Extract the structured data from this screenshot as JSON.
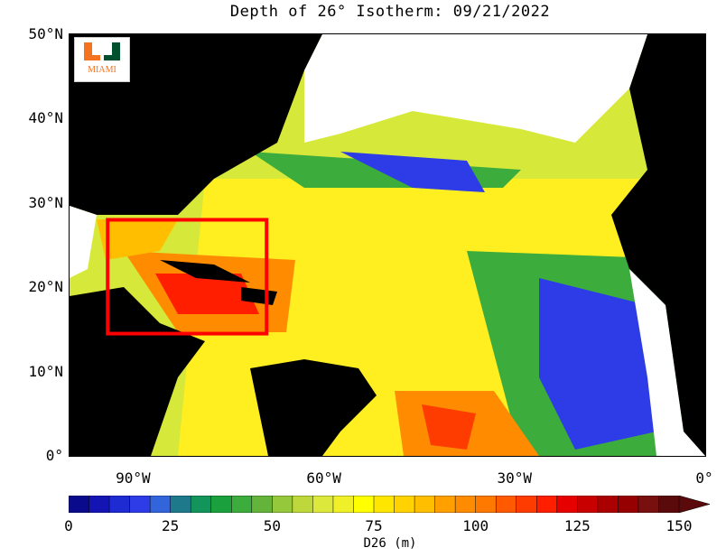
{
  "title": "Depth of 26° Isotherm: 09/21/2022",
  "logo": {
    "text": "MIAMI",
    "colors": {
      "green": "#005030",
      "orange": "#f47321"
    }
  },
  "map": {
    "lon_range": [
      -100,
      0
    ],
    "lat_range": [
      0,
      50
    ],
    "lat_ticks": [
      {
        "value": 50,
        "label": "50°N"
      },
      {
        "value": 40,
        "label": "40°N"
      },
      {
        "value": 30,
        "label": "30°N"
      },
      {
        "value": 20,
        "label": "20°N"
      },
      {
        "value": 10,
        "label": "10°N"
      },
      {
        "value": 0,
        "label": "0°"
      }
    ],
    "lon_ticks": [
      {
        "value": -90,
        "label": "90°W"
      },
      {
        "value": -60,
        "label": "60°W"
      },
      {
        "value": -30,
        "label": "30°W"
      },
      {
        "value": 0,
        "label": "0°"
      }
    ],
    "highlight_box": {
      "lon": [
        -94,
        -69
      ],
      "lat": [
        14.5,
        28
      ],
      "color": "#ff0000"
    },
    "land_color": "#000000",
    "undefined_color": "#ffffff"
  },
  "colorbar": {
    "label": "D26 (m)",
    "range": [
      0,
      150
    ],
    "step": 5,
    "tick_labels": [
      {
        "value": 0,
        "label": "0"
      },
      {
        "value": 25,
        "label": "25"
      },
      {
        "value": 50,
        "label": "50"
      },
      {
        "value": 75,
        "label": "75"
      },
      {
        "value": 100,
        "label": "100"
      },
      {
        "value": 125,
        "label": "125"
      },
      {
        "value": 150,
        "label": "150"
      }
    ],
    "colors": [
      "#0a0a8c",
      "#1414b4",
      "#1e2ad2",
      "#2d3ce6",
      "#3264dc",
      "#1e7a8a",
      "#13945a",
      "#1aa03c",
      "#3cac3c",
      "#64b43c",
      "#96c83c",
      "#bed83c",
      "#dce83c",
      "#f0f028",
      "#ffff00",
      "#ffe600",
      "#ffd200",
      "#ffbe00",
      "#ffa000",
      "#ff8c00",
      "#ff7800",
      "#ff5a00",
      "#ff3c00",
      "#ff1e00",
      "#e60000",
      "#c80000",
      "#aa0000",
      "#960000",
      "#781010",
      "#5a0a0a"
    ]
  }
}
